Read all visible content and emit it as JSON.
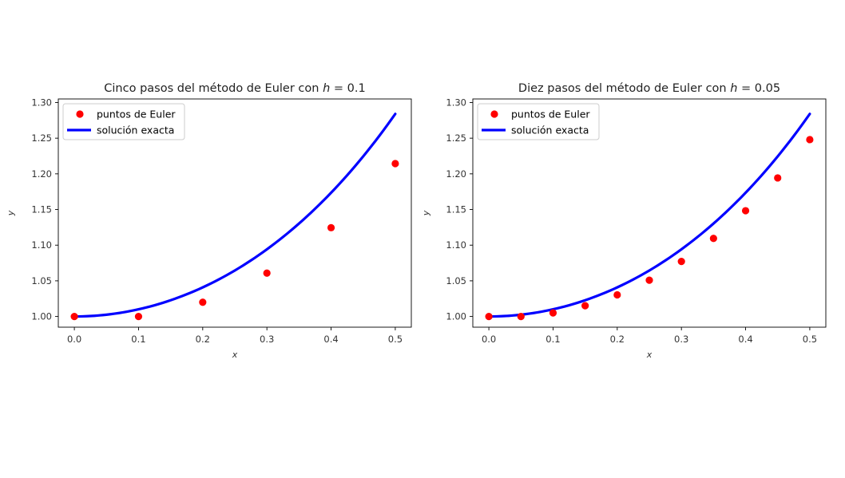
{
  "colors": {
    "points": "#ff0000",
    "line": "#0000ff",
    "background": "#ffffff"
  },
  "chart_data": [
    {
      "type": "scatter+line",
      "title": "Cinco pasos del método de Euler con ",
      "title_math_var": "h",
      "title_math_rest": " = 0.1",
      "xlabel": "x",
      "ylabel": "y",
      "xlim": [
        -0.025,
        0.525
      ],
      "ylim": [
        0.985,
        1.305
      ],
      "xticks": [
        0.0,
        0.1,
        0.2,
        0.3,
        0.4,
        0.5
      ],
      "xtick_labels": [
        "0.0",
        "0.1",
        "0.2",
        "0.3",
        "0.4",
        "0.5"
      ],
      "yticks": [
        1.0,
        1.05,
        1.1,
        1.15,
        1.2,
        1.25,
        1.3
      ],
      "ytick_labels": [
        "1.00",
        "1.05",
        "1.10",
        "1.15",
        "1.20",
        "1.25",
        "1.30"
      ],
      "legend": {
        "placement": "top-left",
        "entries": [
          "puntos de Euler",
          "solución exacta"
        ]
      },
      "series": [
        {
          "name": "puntos de Euler",
          "kind": "scatter",
          "x": [
            0.0,
            0.1,
            0.2,
            0.3,
            0.4,
            0.5
          ],
          "y": [
            1.0,
            1.0,
            1.02,
            1.0608,
            1.1245,
            1.2144
          ]
        },
        {
          "name": "solución exacta",
          "kind": "line",
          "function": "exp(x^2)",
          "x_range": [
            0.0,
            0.5
          ]
        }
      ]
    },
    {
      "type": "scatter+line",
      "title": "Diez pasos del método de Euler con ",
      "title_math_var": "h",
      "title_math_rest": " = 0.05",
      "xlabel": "x",
      "ylabel": "y",
      "xlim": [
        -0.025,
        0.525
      ],
      "ylim": [
        0.985,
        1.305
      ],
      "xticks": [
        0.0,
        0.1,
        0.2,
        0.3,
        0.4,
        0.5
      ],
      "xtick_labels": [
        "0.0",
        "0.1",
        "0.2",
        "0.3",
        "0.4",
        "0.5"
      ],
      "yticks": [
        1.0,
        1.05,
        1.1,
        1.15,
        1.2,
        1.25,
        1.3
      ],
      "ytick_labels": [
        "1.00",
        "1.05",
        "1.10",
        "1.15",
        "1.20",
        "1.25",
        "1.30"
      ],
      "legend": {
        "placement": "top-left",
        "entries": [
          "puntos de Euler",
          "solución exacta"
        ]
      },
      "series": [
        {
          "name": "puntos de Euler",
          "kind": "scatter",
          "x": [
            0.0,
            0.05,
            0.1,
            0.15,
            0.2,
            0.25,
            0.3,
            0.35,
            0.4,
            0.45,
            0.5
          ],
          "y": [
            1.0,
            1.0,
            1.005,
            1.0151,
            1.0303,
            1.0509,
            1.0772,
            1.1095,
            1.1483,
            1.1943,
            1.248
          ]
        },
        {
          "name": "solución exacta",
          "kind": "line",
          "function": "exp(x^2)",
          "x_range": [
            0.0,
            0.5
          ]
        }
      ]
    }
  ]
}
